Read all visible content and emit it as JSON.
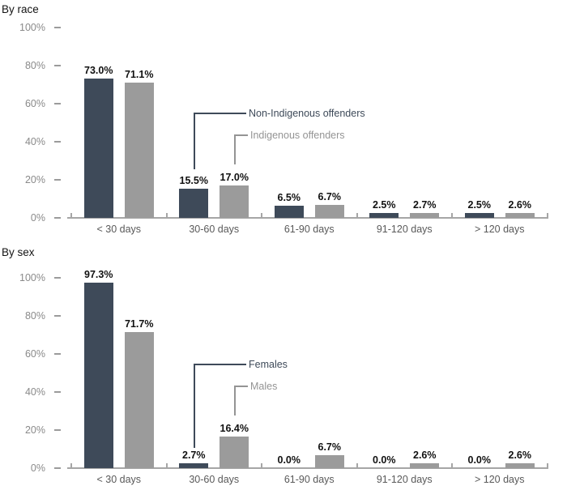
{
  "colors": {
    "series_dark": "#3e4a59",
    "series_gray": "#9b9b9b",
    "axis_line": "#a6a6a6",
    "ytick_label": "#8a8a8a",
    "category_label": "#595959",
    "data_label": "#111111",
    "annotation_dark": "#3e4a59",
    "annotation_gray": "#949494"
  },
  "chart_data": [
    {
      "type": "bar",
      "title": "By race",
      "categories": [
        "< 30 days",
        "30-60 days",
        "61-90 days",
        "91-120 days",
        "> 120 days"
      ],
      "series": [
        {
          "name": "Non-Indigenous offenders",
          "color_key": "series_dark",
          "values": [
            73.0,
            15.5,
            6.5,
            2.5,
            2.5
          ],
          "value_labels": [
            "73.0%",
            "15.5%",
            "6.5%",
            "2.5%",
            "2.5%"
          ]
        },
        {
          "name": "Indigenous offenders",
          "color_key": "series_gray",
          "values": [
            71.1,
            17.0,
            6.7,
            2.7,
            2.6
          ],
          "value_labels": [
            "71.1%",
            "17.0%",
            "6.7%",
            "2.7%",
            "2.6%"
          ]
        }
      ],
      "xlabel": "",
      "ylabel": "",
      "ylim": [
        0,
        100
      ],
      "yticks": [
        {
          "value": 0,
          "label": "0%"
        },
        {
          "value": 20,
          "label": "20%"
        },
        {
          "value": 40,
          "label": "40%"
        },
        {
          "value": 60,
          "label": "60%"
        },
        {
          "value": 80,
          "label": "80%"
        },
        {
          "value": 100,
          "label": "100%"
        }
      ],
      "grid": false,
      "legend_position": "inline-callouts",
      "annotations": [
        {
          "text": "Non-Indigenous offenders",
          "series": 0,
          "category": "30-60 days"
        },
        {
          "text": "Indigenous offenders",
          "series": 1,
          "category": "30-60 days"
        }
      ]
    },
    {
      "type": "bar",
      "title": "By sex",
      "categories": [
        "< 30 days",
        "30-60 days",
        "61-90 days",
        "91-120 days",
        "> 120 days"
      ],
      "series": [
        {
          "name": "Females",
          "color_key": "series_dark",
          "values": [
            97.3,
            2.7,
            0.0,
            0.0,
            0.0
          ],
          "value_labels": [
            "97.3%",
            "2.7%",
            "0.0%",
            "0.0%",
            "0.0%"
          ]
        },
        {
          "name": "Males",
          "color_key": "series_gray",
          "values": [
            71.7,
            16.4,
            6.7,
            2.6,
            2.6
          ],
          "value_labels": [
            "71.7%",
            "16.4%",
            "6.7%",
            "2.6%",
            "2.6%"
          ]
        }
      ],
      "xlabel": "",
      "ylabel": "",
      "ylim": [
        0,
        100
      ],
      "yticks": [
        {
          "value": 0,
          "label": "0%"
        },
        {
          "value": 20,
          "label": "20%"
        },
        {
          "value": 40,
          "label": "40%"
        },
        {
          "value": 60,
          "label": "60%"
        },
        {
          "value": 80,
          "label": "80%"
        },
        {
          "value": 100,
          "label": "100%"
        }
      ],
      "grid": false,
      "legend_position": "inline-callouts",
      "annotations": [
        {
          "text": "Females",
          "series": 0,
          "category": "30-60 days"
        },
        {
          "text": "Males",
          "series": 1,
          "category": "30-60 days"
        }
      ]
    }
  ]
}
